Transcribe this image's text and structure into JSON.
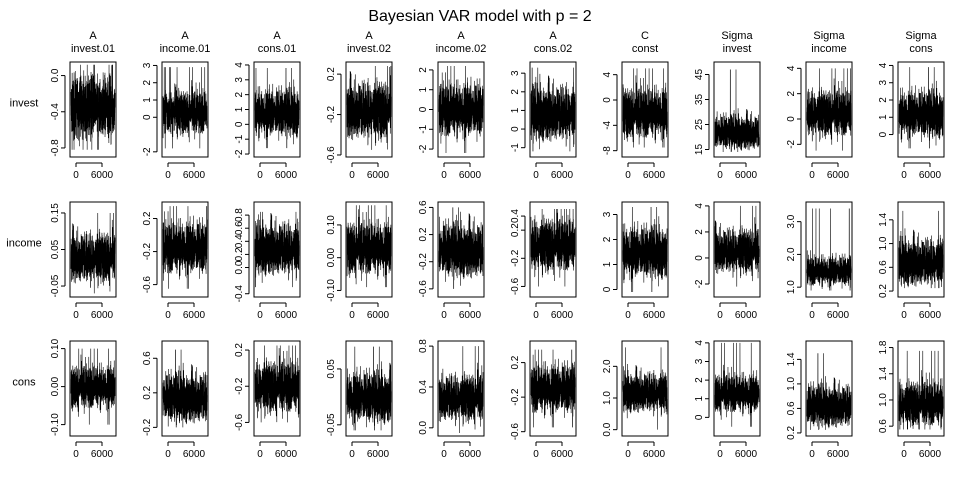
{
  "chart_data": {
    "type": "line",
    "title": "Bayesian VAR model with p = 2",
    "rows": [
      "invest",
      "income",
      "cons"
    ],
    "columns": [
      {
        "group": "A",
        "name": "invest.01"
      },
      {
        "group": "A",
        "name": "income.01"
      },
      {
        "group": "A",
        "name": "cons.01"
      },
      {
        "group": "A",
        "name": "invest.02"
      },
      {
        "group": "A",
        "name": "income.02"
      },
      {
        "group": "A",
        "name": "cons.02"
      },
      {
        "group": "C",
        "name": "const"
      },
      {
        "group": "Sigma",
        "name": "invest"
      },
      {
        "group": "Sigma",
        "name": "income"
      },
      {
        "group": "Sigma",
        "name": "cons"
      }
    ],
    "x_ticks": [
      0,
      6000
    ],
    "x_range": [
      0,
      10000
    ],
    "panels": [
      [
        {
          "ylim": [
            -0.9,
            0.15
          ],
          "yticks": [
            -0.8,
            -0.4,
            0.0
          ],
          "tick_labels": [
            "-0.8",
            "-0.4",
            "0.0"
          ],
          "center": -0.35,
          "spread": 0.3,
          "min": -0.82,
          "max": 0.12
        },
        {
          "ylim": [
            -2.3,
            3.2
          ],
          "yticks": [
            -2,
            0,
            1,
            2,
            3
          ],
          "tick_labels": [
            "-2",
            "0",
            "1",
            "2",
            "3"
          ],
          "center": 0.3,
          "spread": 1.1,
          "min": -1.8,
          "max": 2.9
        },
        {
          "ylim": [
            -2.2,
            4.2
          ],
          "yticks": [
            -2,
            -1,
            0,
            1,
            2,
            3,
            4
          ],
          "tick_labels": [
            "-2",
            "-1",
            "0",
            "1",
            "2",
            "3",
            "4"
          ],
          "center": 0.8,
          "spread": 1.4,
          "min": -1.6,
          "max": 3.8
        },
        {
          "ylim": [
            -0.62,
            0.32
          ],
          "yticks": [
            -0.6,
            -0.2,
            0.2
          ],
          "tick_labels": [
            "-0.6",
            "-0.2",
            "0.2"
          ],
          "center": -0.15,
          "spread": 0.25,
          "min": -0.55,
          "max": 0.28
        },
        {
          "ylim": [
            -2.4,
            2.4
          ],
          "yticks": [
            -2,
            -1,
            0,
            1,
            2
          ],
          "tick_labels": [
            "-2",
            "-1",
            "0",
            "1",
            "2"
          ],
          "center": 0.0,
          "spread": 1.2,
          "min": -2.2,
          "max": 2.2
        },
        {
          "ylim": [
            -1.5,
            3.6
          ],
          "yticks": [
            -1,
            0,
            1,
            2,
            3
          ],
          "tick_labels": [
            "-1",
            "0",
            "1",
            "2",
            "3"
          ],
          "center": 0.9,
          "spread": 1.3,
          "min": -1.2,
          "max": 3.3
        },
        {
          "ylim": [
            -9,
            6
          ],
          "yticks": [
            -8,
            -4,
            0,
            4
          ],
          "tick_labels": [
            "-8",
            "-4",
            "0",
            "4"
          ],
          "center": -2,
          "spread": 3.5,
          "min": -7.5,
          "max": 5
        },
        {
          "ylim": [
            12,
            50
          ],
          "yticks": [
            15,
            25,
            35,
            45
          ],
          "tick_labels": [
            "15",
            "25",
            "35",
            "45"
          ],
          "center": 22,
          "spread": 6,
          "min": 14,
          "max": 47
        },
        {
          "ylim": [
            -3,
            4.5
          ],
          "yticks": [
            -2,
            0,
            2,
            4
          ],
          "tick_labels": [
            "-2",
            "0",
            "2",
            "4"
          ],
          "center": 0.5,
          "spread": 1.6,
          "min": -2.5,
          "max": 4.0
        },
        {
          "ylim": [
            -1.3,
            4.2
          ],
          "yticks": [
            0,
            1,
            2,
            3,
            4
          ],
          "tick_labels": [
            "0",
            "1",
            "2",
            "3",
            "4"
          ],
          "center": 1.2,
          "spread": 1.2,
          "min": -0.8,
          "max": 3.9
        }
      ],
      [
        {
          "ylim": [
            -0.08,
            0.18
          ],
          "yticks": [
            -0.05,
            0.05,
            0.15
          ],
          "tick_labels": [
            "-0.05",
            "0.05",
            "0.15"
          ],
          "center": 0.03,
          "spread": 0.06,
          "min": -0.07,
          "max": 0.15
        },
        {
          "ylim": [
            -0.75,
            0.4
          ],
          "yticks": [
            -0.6,
            -0.2,
            0.2
          ],
          "tick_labels": [
            "-0.6",
            "-0.2",
            "0.2"
          ],
          "center": -0.15,
          "spread": 0.28,
          "min": -0.65,
          "max": 0.35
        },
        {
          "ylim": [
            -0.45,
            1.0
          ],
          "yticks": [
            -0.4,
            0.0,
            0.2,
            0.4,
            0.6,
            0.8
          ],
          "tick_labels": [
            "-0.4",
            "0.0",
            "0.2",
            "0.4",
            "0.6",
            "0.8"
          ],
          "center": 0.3,
          "spread": 0.35,
          "min": -0.3,
          "max": 0.85
        },
        {
          "ylim": [
            -0.12,
            0.17
          ],
          "yticks": [
            -0.1,
            0.0,
            0.1
          ],
          "tick_labels": [
            "-0.10",
            "0.00",
            "0.10"
          ],
          "center": 0.03,
          "spread": 0.07,
          "min": -0.09,
          "max": 0.16
        },
        {
          "ylim": [
            -0.72,
            0.68
          ],
          "yticks": [
            -0.6,
            -0.2,
            0.2,
            0.6
          ],
          "tick_labels": [
            "-0.6",
            "-0.2",
            "0.2",
            "0.6"
          ],
          "center": -0.02,
          "spread": 0.35,
          "min": -0.6,
          "max": 0.6
        },
        {
          "ylim": [
            -0.75,
            0.6
          ],
          "yticks": [
            -0.6,
            -0.2,
            0.2,
            0.4
          ],
          "tick_labels": [
            "-0.6",
            "-0.2",
            "0.2",
            "0.4"
          ],
          "center": 0.0,
          "spread": 0.33,
          "min": -0.6,
          "max": 0.5
        },
        {
          "ylim": [
            -0.3,
            3.5
          ],
          "yticks": [
            0,
            1,
            2,
            3
          ],
          "tick_labels": [
            "0",
            "1",
            "2",
            "3"
          ],
          "center": 1.5,
          "spread": 0.9,
          "min": -0.1,
          "max": 3.3
        },
        {
          "ylim": [
            -3.0,
            4.3
          ],
          "yticks": [
            -2,
            0,
            2,
            4
          ],
          "tick_labels": [
            "-2",
            "0",
            "2",
            "4"
          ],
          "center": 0.6,
          "spread": 1.5,
          "min": -2.2,
          "max": 4.0
        },
        {
          "ylim": [
            0.7,
            3.6
          ],
          "yticks": [
            1.0,
            2.0,
            3.0
          ],
          "tick_labels": [
            "1.0",
            "2.0",
            "3.0"
          ],
          "center": 1.5,
          "spread": 0.4,
          "min": 0.9,
          "max": 3.4
        },
        {
          "ylim": [
            0.1,
            1.7
          ],
          "yticks": [
            0.2,
            0.6,
            1.0,
            1.4
          ],
          "tick_labels": [
            "0.2",
            "0.6",
            "1.0",
            "1.4"
          ],
          "center": 0.7,
          "spread": 0.35,
          "min": 0.25,
          "max": 1.55
        }
      ],
      [
        {
          "ylim": [
            -0.13,
            0.12
          ],
          "yticks": [
            -0.1,
            0.0,
            0.1
          ],
          "tick_labels": [
            "-0.10",
            "0.00",
            "0.10"
          ],
          "center": 0.0,
          "spread": 0.05,
          "min": -0.1,
          "max": 0.1
        },
        {
          "ylim": [
            -0.3,
            0.8
          ],
          "yticks": [
            -0.2,
            0.2,
            0.6
          ],
          "tick_labels": [
            "-0.2",
            "0.2",
            "0.6"
          ],
          "center": 0.15,
          "spread": 0.25,
          "min": -0.2,
          "max": 0.7
        },
        {
          "ylim": [
            -0.75,
            0.3
          ],
          "yticks": [
            -0.6,
            -0.2,
            0.2
          ],
          "tick_labels": [
            "-0.6",
            "-0.2",
            "0.2"
          ],
          "center": -0.2,
          "spread": 0.25,
          "min": -0.6,
          "max": 0.25
        },
        {
          "ylim": [
            -0.07,
            0.1
          ],
          "yticks": [
            -0.05,
            0.05
          ],
          "tick_labels": [
            "-0.05",
            "0.05"
          ],
          "center": 0.0,
          "spread": 0.04,
          "min": -0.06,
          "max": 0.09
        },
        {
          "ylim": [
            -0.08,
            0.85
          ],
          "yticks": [
            0.0,
            0.4,
            0.8
          ],
          "tick_labels": [
            "0.0",
            "0.4",
            "0.8"
          ],
          "center": 0.3,
          "spread": 0.2,
          "min": -0.05,
          "max": 0.8
        },
        {
          "ylim": [
            -0.65,
            0.45
          ],
          "yticks": [
            -0.6,
            -0.2,
            0.2
          ],
          "tick_labels": [
            "-0.6",
            "-0.2",
            "0.2"
          ],
          "center": -0.1,
          "spread": 0.25,
          "min": -0.55,
          "max": 0.35
        },
        {
          "ylim": [
            -0.2,
            2.8
          ],
          "yticks": [
            0.0,
            1.0,
            2.0
          ],
          "tick_labels": [
            "0.0",
            "1.0",
            "2.0"
          ],
          "center": 1.2,
          "spread": 0.55,
          "min": 0.0,
          "max": 2.6
        },
        {
          "ylim": [
            -1.0,
            4.1
          ],
          "yticks": [
            0,
            1,
            2,
            3,
            4
          ],
          "tick_labels": [
            "0",
            "1",
            "2",
            "3",
            "4"
          ],
          "center": 1.3,
          "spread": 0.9,
          "min": -0.5,
          "max": 4.0
        },
        {
          "ylim": [
            0.15,
            1.7
          ],
          "yticks": [
            0.2,
            0.6,
            1.0,
            1.4
          ],
          "tick_labels": [
            "0.2",
            "0.6",
            "1.0",
            "1.4"
          ],
          "center": 0.65,
          "spread": 0.3,
          "min": 0.25,
          "max": 1.5
        },
        {
          "ylim": [
            0.45,
            1.9
          ],
          "yticks": [
            0.6,
            1.0,
            1.4,
            1.8
          ],
          "tick_labels": [
            "0.6",
            "1.0",
            "1.4",
            "1.8"
          ],
          "center": 0.95,
          "spread": 0.3,
          "min": 0.55,
          "max": 1.75
        }
      ]
    ]
  }
}
